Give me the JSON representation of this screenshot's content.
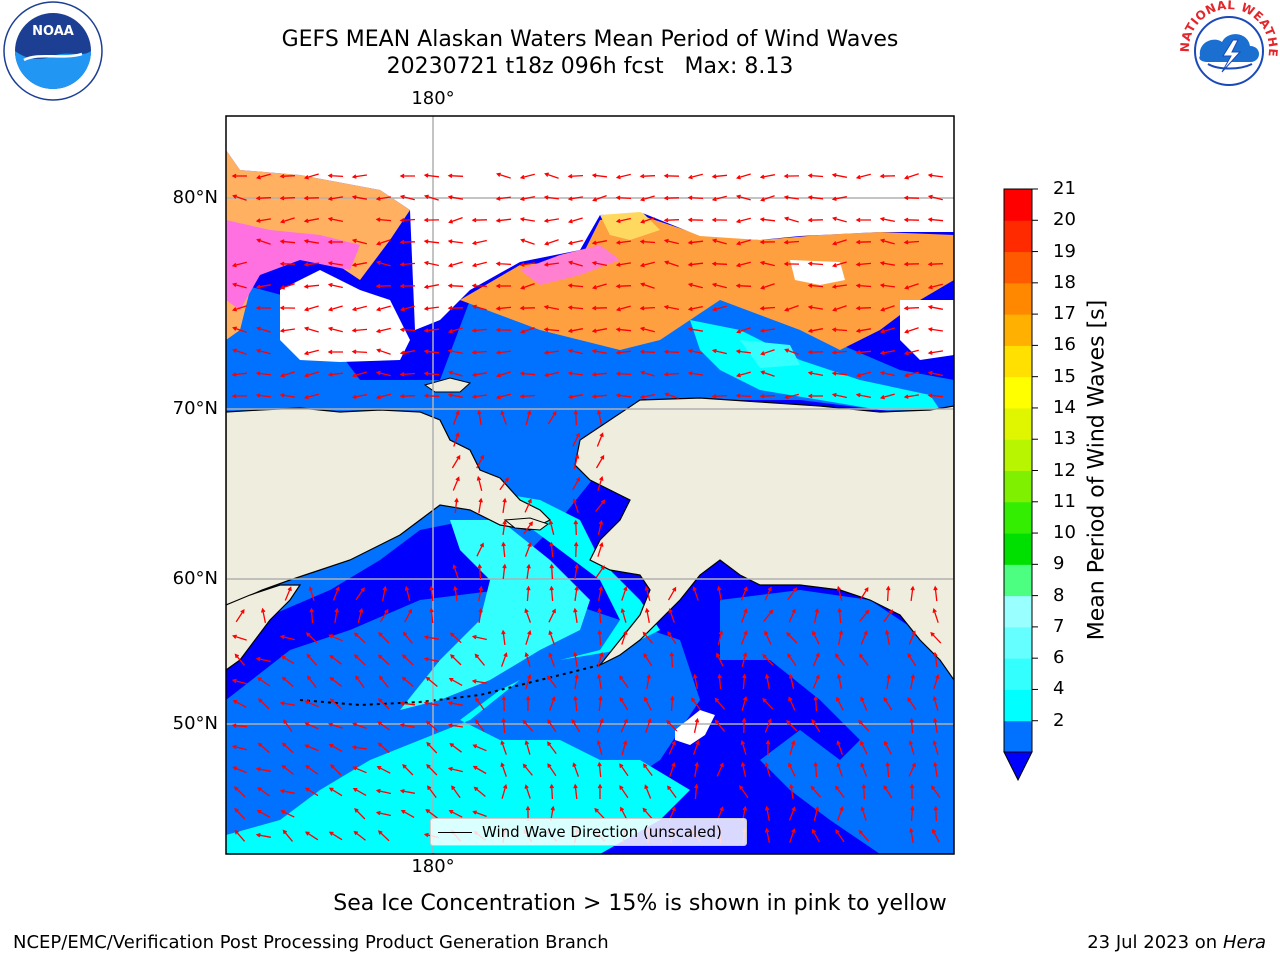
{
  "title": {
    "line1": "GEFS MEAN Alaskan Waters Mean Period of Wind Waves",
    "line2": "20230721 t18z 096h fcst   Max: 8.13"
  },
  "map": {
    "lon_ticks": [
      "180°",
      "180°"
    ],
    "lat_ticks": [
      "80°N",
      "70°N",
      "60°N",
      "50°N"
    ],
    "legend_label": "Wind Wave Direction (unscaled)",
    "arrow_color": "#ff0000",
    "land_color": "#efedde",
    "gridline_color": "#b0b0b0"
  },
  "colorbar": {
    "label": "Mean Period of Wind Waves [s]",
    "ticks": [
      "21",
      "20",
      "19",
      "18",
      "17",
      "16",
      "15",
      "14",
      "13",
      "12",
      "11",
      "10",
      "9",
      "8",
      "7",
      "6",
      "4",
      "2"
    ],
    "levels": [
      2,
      4,
      6,
      7,
      8,
      9,
      10,
      11,
      12,
      13,
      14,
      15,
      16,
      17,
      18,
      19,
      20,
      21
    ],
    "colors": [
      "#0072ff",
      "#00ffff",
      "#33ffff",
      "#66ffff",
      "#99ffff",
      "#4dff80",
      "#00e000",
      "#33ee00",
      "#7ff000",
      "#b8f500",
      "#e0f500",
      "#ffff00",
      "#ffe000",
      "#ffb000",
      "#ff8800",
      "#ff5a00",
      "#ff2a00",
      "#ff0000"
    ],
    "extend_color": "#0000ff"
  },
  "caption": "Sea Ice Concentration > 15% is shown in pink to yellow",
  "footer": {
    "left": "NCEP/EMC/Verification Post Processing Product Generation Branch",
    "right_date": "23 Jul 2023 on",
    "right_machine": "Hera"
  },
  "logos": {
    "left": "NOAA",
    "right": "NATIONAL WEATHER SERVICE",
    "left_icon": "noaa-logo",
    "right_icon": "nws-logo"
  }
}
